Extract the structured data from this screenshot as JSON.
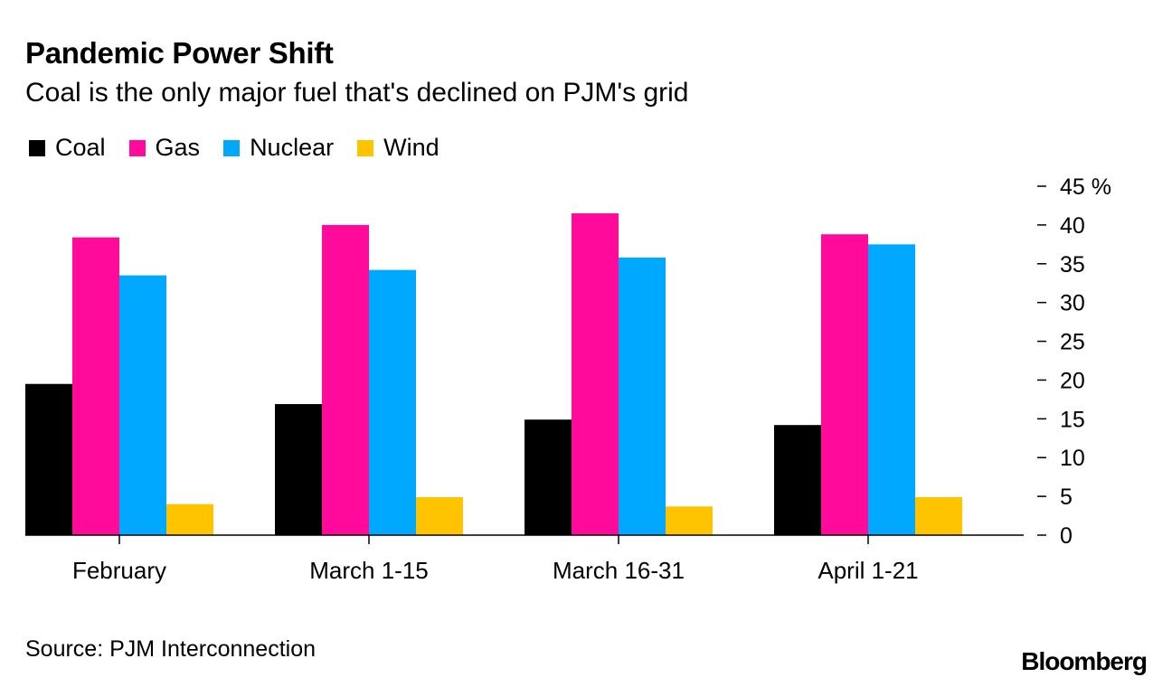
{
  "chart_data": {
    "type": "bar",
    "title": "Pandemic Power Shift",
    "subtitle": "Coal is the only major fuel that's declined on PJM's grid",
    "categories": [
      "February",
      "March 1-15",
      "March 16-31",
      "April 1-21"
    ],
    "series": [
      {
        "name": "Coal",
        "color": "#000000",
        "values": [
          19.5,
          16.9,
          14.9,
          14.2
        ]
      },
      {
        "name": "Gas",
        "color": "#ff0a9a",
        "values": [
          38.4,
          40.0,
          41.5,
          38.8
        ]
      },
      {
        "name": "Nuclear",
        "color": "#00a9ff",
        "values": [
          33.5,
          34.2,
          35.8,
          37.5
        ]
      },
      {
        "name": "Wind",
        "color": "#ffc300",
        "values": [
          4.0,
          4.9,
          3.7,
          4.9
        ]
      }
    ],
    "ylim": [
      0,
      45
    ],
    "yticks": [
      0,
      5,
      10,
      15,
      20,
      25,
      30,
      35,
      40,
      45
    ],
    "ytick_labels": [
      "0",
      "5",
      "10",
      "15",
      "20",
      "25",
      "30",
      "35",
      "40",
      "45 %"
    ],
    "axis_position": "right",
    "xlabel": "",
    "ylabel": "",
    "legend": "top-left"
  },
  "source": "Source: PJM Interconnection",
  "brand": "Bloomberg"
}
